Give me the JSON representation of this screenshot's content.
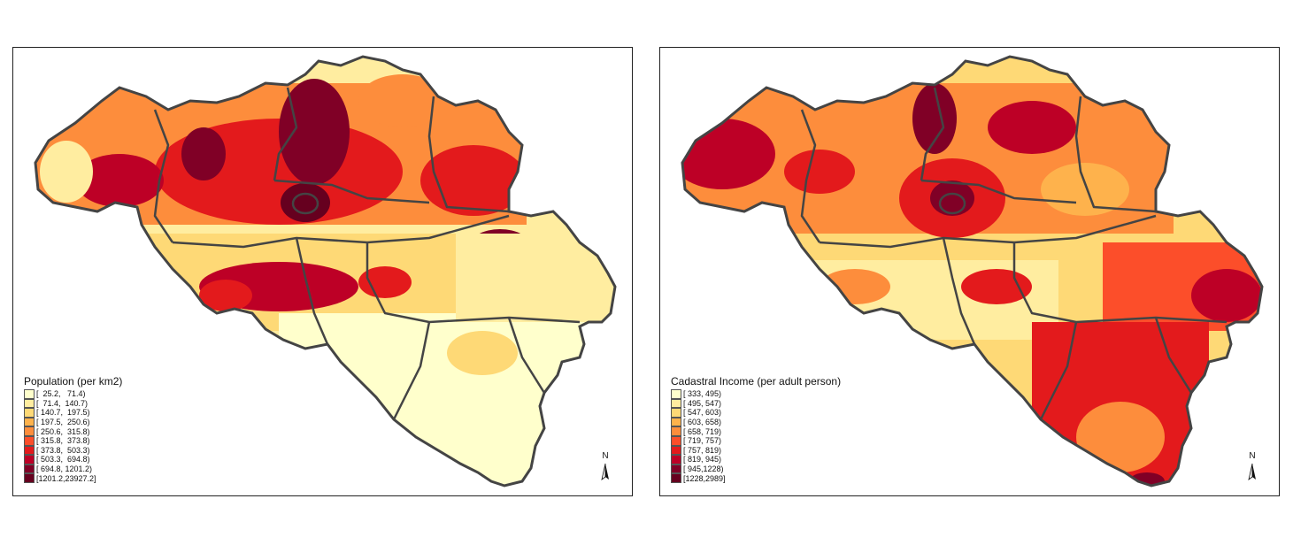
{
  "maps": [
    {
      "legend_title": "Population (per km2)",
      "colors": [
        "#ffffcc",
        "#ffeda0",
        "#fed976",
        "#feb24c",
        "#fd8d3c",
        "#fc4e2a",
        "#e31a1c",
        "#bd0026",
        "#800026",
        "#66001f"
      ],
      "classes": [
        "[  25.2,   71.4)",
        "[  71.4,  140.7)",
        "[ 140.7,  197.5)",
        "[ 197.5,  250.6)",
        "[ 250.6,  315.8)",
        "[ 315.8,  373.8)",
        "[ 373.8,  503.3)",
        "[ 503.3,  694.8)",
        "[ 694.8, 1201.2)",
        "[1201.2,23927.2]"
      ],
      "north_label": "N"
    },
    {
      "legend_title": "Cadastral Income (per adult person)",
      "colors": [
        "#ffffcc",
        "#ffeda0",
        "#fed976",
        "#feb24c",
        "#fd8d3c",
        "#fc4e2a",
        "#e31a1c",
        "#bd0026",
        "#800026",
        "#66001f"
      ],
      "classes": [
        "[ 333, 495)",
        "[ 495, 547)",
        "[ 547, 603)",
        "[ 603, 658)",
        "[ 658, 719)",
        "[ 719, 757)",
        "[ 757, 819)",
        "[ 819, 945)",
        "[ 945,1228)",
        "[1228,2989]"
      ],
      "north_label": "N"
    }
  ]
}
